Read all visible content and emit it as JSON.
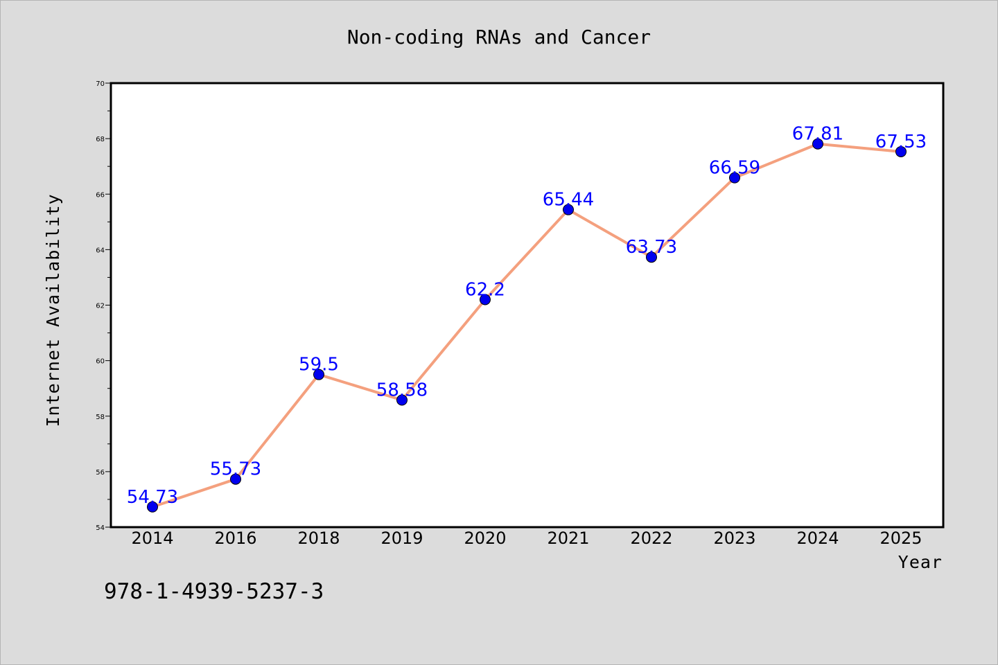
{
  "chart_data": {
    "type": "line",
    "title": "Non-coding RNAs and Cancer",
    "xlabel": "Year",
    "ylabel": "Internet Availability",
    "categories": [
      "2014",
      "2016",
      "2018",
      "2019",
      "2020",
      "2021",
      "2022",
      "2023",
      "2024",
      "2025"
    ],
    "series": [
      {
        "values": [
          54.73,
          55.73,
          59.5,
          58.58,
          62.2,
          65.44,
          63.73,
          66.59,
          67.81,
          67.53
        ],
        "labels": [
          "54.73",
          "55.73",
          "59.5",
          "58.58",
          "62.2",
          "65.44",
          "63.73",
          "66.59",
          "67.81",
          "67.53"
        ],
        "line_color": "#f4a07e",
        "marker_color": "#0000ee"
      }
    ],
    "ylim": [
      54,
      70
    ],
    "yticks": [
      "54",
      "56",
      "58",
      "60",
      "62",
      "64",
      "66",
      "68",
      "70"
    ],
    "grid": false,
    "annotation": "978-1-4939-5237-3"
  }
}
